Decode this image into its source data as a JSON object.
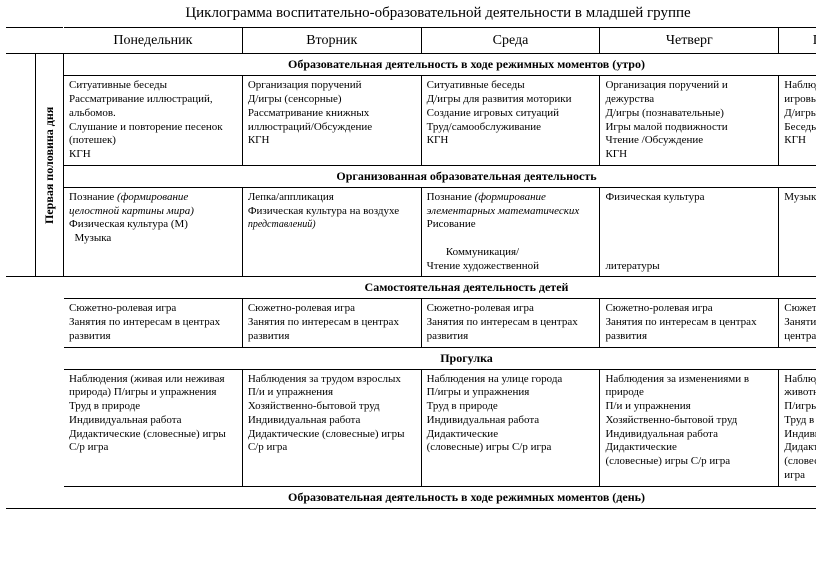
{
  "title": "Циклограмма воспитательно-образовательной деятельности в младшей группе",
  "days": {
    "mon": "Понедельник",
    "tue": "Вторник",
    "wed": "Среда",
    "thu": "Четверг",
    "fri": "Пят"
  },
  "side_label": "Первая половина дня",
  "sections": {
    "morning": "Образовательная деятельность в ходе режимных моментов (утро)",
    "organized": "Организованная образовательная деятельность",
    "independent": "Самостоятельная деятельность детей",
    "walk": "Прогулка",
    "day": "Образовательная деятельность в ходе режимных моментов (день)"
  },
  "morning": {
    "mon": "Ситуативные беседы\nРассматривание иллюстраций, альбомов.\nСлушание и повторение песенок (потешек)\nКГН",
    "tue": "Организация поручений\nД/игры (сенсорные)\nРассматривание книжных иллюстраций/Обсуждение\nКГН",
    "wed": "Ситуативные беседы\nД/игры для развития моторики\nСоздание игровых ситуаций\nТруд/самообслуживание\nКГН",
    "thu": "Организация поручений и дежурства\nД/игры (познавательные)\nИгры малой подвижности\nЧтение /Обсуждение\nКГН",
    "fri": "Наблюдени\nигровых си\nД/игры (ра\nБеседы с д\nКГН"
  },
  "organized": {
    "mon_main": "Познание ",
    "mon_ital": "(формирование целостной картины мира)",
    "mon_rest": "\nФизическая культура (М)\n  Музыка",
    "tue_main": "Лепка/аппликация\nФизическая культура на воздухе ",
    "tue_ital": "представлений)",
    "wed_main": "Познание ",
    "wed_ital": "(формирование элементарных математических",
    "wed_rest": "\nРисование\n\n       Коммуникация/\nЧтение художественной",
    "thu_main": "Физическая культура\n\n\n\n\nлитературы",
    "fri_main": "Музыка"
  },
  "independent": {
    "mon": "Сюжетно-ролевая игра\nЗанятия по интересам в центрах развития",
    "tue": "Сюжетно-ролевая игра\nЗанятия по интересам в центрах развития",
    "wed": "Сюжетно-ролевая игра\nЗанятия по интересам в центрах развития",
    "thu": "Сюжетно-ролевая игра\nЗанятия по интересам в центрах развития",
    "fri": "Сюжетно-р\nЗанятия по\nцентрах ра"
  },
  "walk": {
    "mon": "Наблюдения (живая или неживая природа) П/игры и упражнения\nТруд в природе\nИндивидуальная работа\nДидактические (словесные) игры С/р игра",
    "tue": "Наблюдения за трудом взрослых\nП/и и упражнения\nХозяйственно-бытовой труд\nИндивидуальная работа\nДидактические (словесные) игры С/р игра",
    "wed": "Наблюдения на улице города\nП/игры и упражнения\nТруд в природе\nИндивидуальная работа\nДидактические\n(словесные) игры С/р игра",
    "thu": "Наблюдения за изменениями в природе\nП/и и упражнения\nХозяйственно-бытовой труд\nИндивидуальная работа\nДидактические\n(словесные) игры С/р игра",
    "fri": "Наблюдени\nживотным\nП/игры и у\nТруд в при\nИндивидуа\nДидактиче\n(словесны\nигра"
  }
}
